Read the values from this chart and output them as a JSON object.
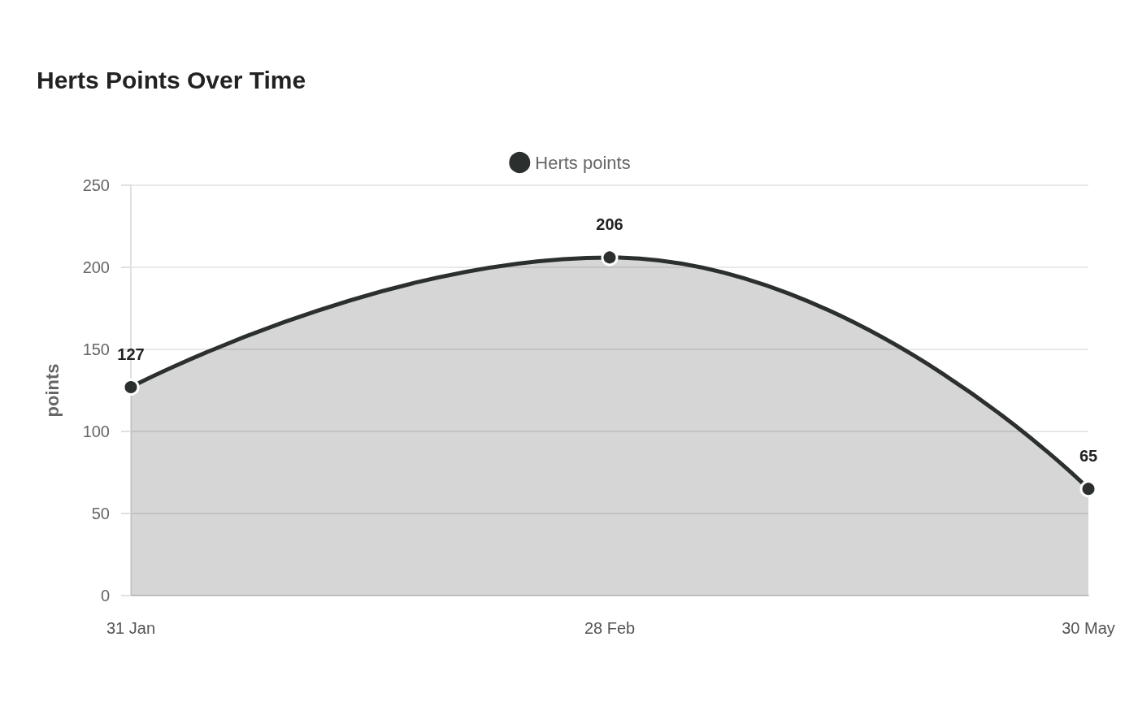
{
  "chart_data": {
    "type": "area",
    "title": "Herts Points Over Time",
    "ylabel": "points",
    "categories": [
      "31 Jan",
      "28 Feb",
      "30 May"
    ],
    "series": [
      {
        "name": "Herts points",
        "color": "#2b302e",
        "values": [
          127,
          206,
          65
        ]
      }
    ],
    "ylim": [
      0,
      250
    ],
    "yticks": [
      0,
      50,
      100,
      150,
      200,
      250
    ],
    "grid": "y",
    "legend": "top",
    "marker": "circle",
    "data_labels": true
  }
}
